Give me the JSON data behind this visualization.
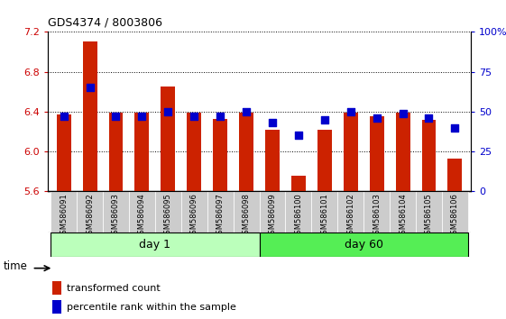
{
  "title": "GDS4374 / 8003806",
  "samples": [
    "GSM586091",
    "GSM586092",
    "GSM586093",
    "GSM586094",
    "GSM586095",
    "GSM586096",
    "GSM586097",
    "GSM586098",
    "GSM586099",
    "GSM586100",
    "GSM586101",
    "GSM586102",
    "GSM586103",
    "GSM586104",
    "GSM586105",
    "GSM586106"
  ],
  "transformed_count": [
    6.37,
    7.1,
    6.39,
    6.39,
    6.65,
    6.39,
    6.33,
    6.39,
    6.22,
    5.76,
    6.22,
    6.39,
    6.35,
    6.39,
    6.32,
    5.93
  ],
  "percentile_rank": [
    47,
    65,
    47,
    47,
    50,
    47,
    47,
    50,
    43,
    35,
    45,
    50,
    46,
    49,
    46,
    40
  ],
  "ylim_left": [
    5.6,
    7.2
  ],
  "ylim_right": [
    0,
    100
  ],
  "yticks_left": [
    5.6,
    6.0,
    6.4,
    6.8,
    7.2
  ],
  "yticks_right": [
    0,
    25,
    50,
    75,
    100
  ],
  "bar_color": "#cc2200",
  "dot_color": "#0000cc",
  "day1_indices": [
    0,
    1,
    2,
    3,
    4,
    5,
    6,
    7
  ],
  "day60_indices": [
    8,
    9,
    10,
    11,
    12,
    13,
    14,
    15
  ],
  "day1_label": "day 1",
  "day60_label": "day 60",
  "time_label": "time",
  "legend_bar": "transformed count",
  "legend_dot": "percentile rank within the sample",
  "group1_color": "#bbffbb",
  "group2_color": "#55ee55",
  "left_axis_color": "#cc0000",
  "right_axis_color": "#0000cc",
  "bar_bottom": 5.6,
  "dot_size": 28,
  "bar_width": 0.55
}
